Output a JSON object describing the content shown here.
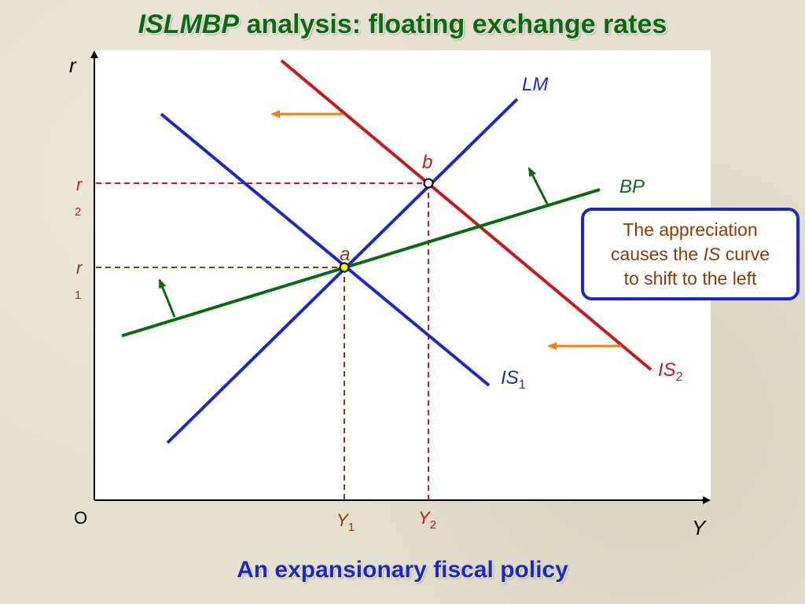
{
  "title": {
    "italic_part": "ISLMBP",
    "rest": " analysis: floating exchange rates"
  },
  "caption": "An expansionary fiscal policy",
  "callout": {
    "line1": "The appreciation",
    "line2_before": "causes the ",
    "line2_italic": "IS",
    "line2_after": " curve",
    "line3": "to shift to the left"
  },
  "axes": {
    "y_label": "r",
    "x_label": "Y",
    "origin": "O",
    "ticks": {
      "r2": {
        "main": "r",
        "sub": "2"
      },
      "r1": {
        "main": "r",
        "sub": "1"
      },
      "y1": {
        "main": "Y",
        "sub": "1"
      },
      "y2": {
        "main": "Y",
        "sub": "2"
      }
    }
  },
  "curves": {
    "lm": "LM",
    "bp": "BP",
    "is1": {
      "main": "IS",
      "sub": "1"
    },
    "is2": {
      "main": "IS",
      "sub": "2"
    }
  },
  "points": {
    "a": "a",
    "b": "b"
  },
  "colors": {
    "title": "#0a6a10",
    "caption": "#1a28c8",
    "lm": "#1a28c8",
    "is1": "#1a28c8",
    "is2": "#c81818",
    "bp": "#0a6a10",
    "shift_arrow": "#f08010",
    "dashed_r2_y2": "#c81818",
    "dashed_r1_y1": "#8b3a06",
    "callout_text": "#8b3a06",
    "callout_border": "#1a28c8"
  }
}
